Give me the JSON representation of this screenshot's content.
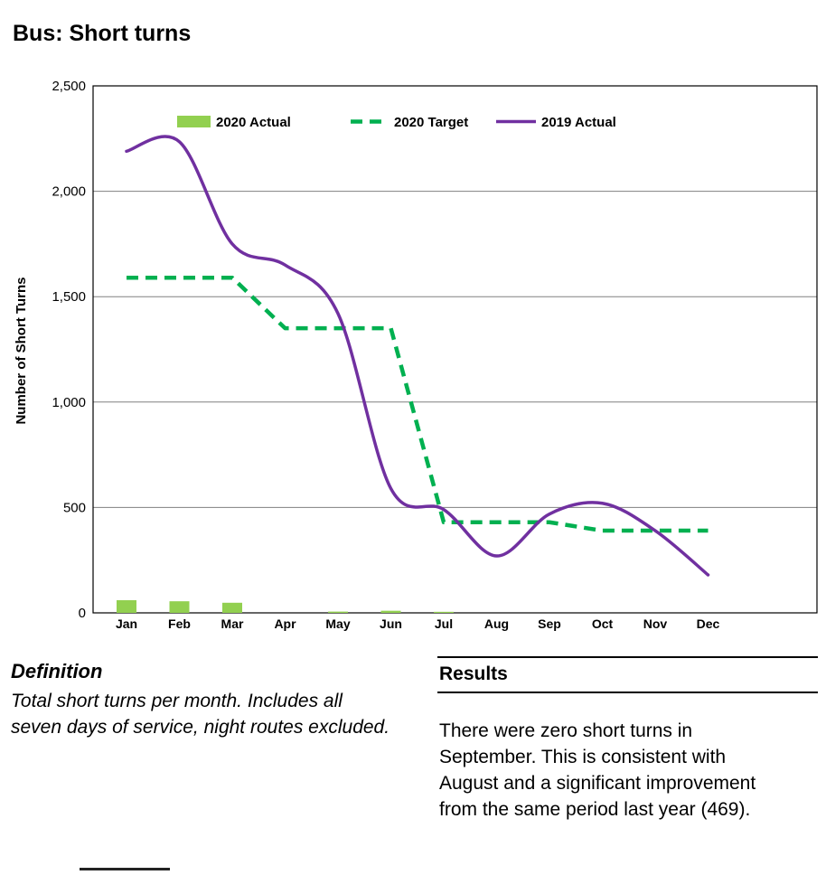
{
  "page": {
    "title": "Bus: Short turns"
  },
  "chart_data": {
    "type": "combo",
    "title": "",
    "categories": [
      "Jan",
      "Feb",
      "Mar",
      "Apr",
      "May",
      "Jun",
      "Jul",
      "Aug",
      "Sep",
      "Oct",
      "Nov",
      "Dec"
    ],
    "series": [
      {
        "name": "2020 Actual",
        "type": "bar",
        "style": "solid",
        "color": "#92d050",
        "values": [
          60,
          55,
          48,
          0,
          6,
          10,
          5,
          0,
          0,
          null,
          null,
          null
        ]
      },
      {
        "name": "2020 Target",
        "type": "line",
        "style": "dashed",
        "color": "#00b050",
        "values": [
          1590,
          1590,
          1590,
          1350,
          1350,
          1350,
          430,
          430,
          430,
          390,
          390,
          390
        ]
      },
      {
        "name": "2019 Actual",
        "type": "line",
        "style": "solid",
        "color": "#7030a0",
        "values": [
          2190,
          2235,
          1750,
          1650,
          1420,
          590,
          490,
          270,
          469,
          520,
          390,
          180
        ]
      }
    ],
    "xlabel": "",
    "ylabel": "Number of Short Turns",
    "ylim": [
      0,
      2500
    ],
    "ytick_interval": 500,
    "yticks": [
      "0",
      "500",
      "1,000",
      "1,500",
      "2,000",
      "2,500"
    ],
    "grid": true,
    "legend_position": "top",
    "gridline_color": "#808080",
    "border_color": "#000000"
  },
  "definition": {
    "heading": "Definition",
    "body": "Total short turns per month. Includes all seven days of service, night routes excluded."
  },
  "results": {
    "heading": "Results",
    "body": "There were zero short turns in September. This is consistent with August and a significant improvement from the same period last year (469)."
  }
}
